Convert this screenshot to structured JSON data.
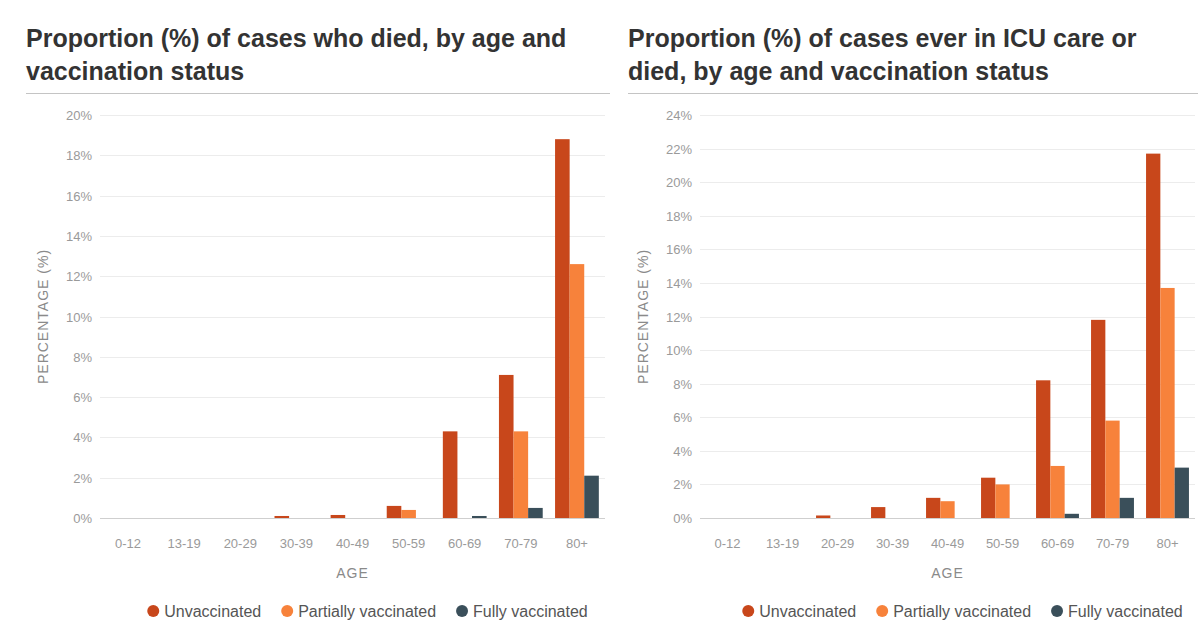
{
  "chart_data": [
    {
      "type": "bar",
      "title": "Proportion (%) of cases who died, by age and vaccination status",
      "x_label": "AGE",
      "y_label": "PERCENTAGE (%)",
      "categories": [
        "0-12",
        "13-19",
        "20-29",
        "30-39",
        "40-49",
        "50-59",
        "60-69",
        "70-79",
        "80+"
      ],
      "series": [
        {
          "name": "Unvaccinated",
          "color": "#c8471b",
          "values": [
            0,
            0,
            0,
            0.1,
            0.15,
            0.6,
            4.3,
            7.1,
            18.8
          ]
        },
        {
          "name": "Partially vaccinated",
          "color": "#f7823b",
          "values": [
            0,
            0,
            0,
            0,
            0,
            0.4,
            0,
            4.3,
            12.6
          ]
        },
        {
          "name": "Fully vaccinated",
          "color": "#3a4f5a",
          "values": [
            0,
            0,
            0,
            0,
            0,
            0,
            0.1,
            0.5,
            2.1
          ]
        }
      ],
      "ylim": [
        0,
        20
      ],
      "yticks": [
        {
          "value": 0,
          "label": "0%"
        },
        {
          "value": 2,
          "label": "2%"
        },
        {
          "value": 4,
          "label": "4%"
        },
        {
          "value": 6,
          "label": "6%"
        },
        {
          "value": 8,
          "label": "8%"
        },
        {
          "value": 10,
          "label": "10%"
        },
        {
          "value": 12,
          "label": "12%"
        },
        {
          "value": 14,
          "label": "14%"
        },
        {
          "value": 16,
          "label": "16%"
        },
        {
          "value": 18,
          "label": "18%"
        },
        {
          "value": 20,
          "label": "20%"
        }
      ],
      "grid": true,
      "legend": "bottom"
    },
    {
      "type": "bar",
      "title": "Proportion (%) of cases ever in ICU care or died, by age and vaccination status",
      "x_label": "AGE",
      "y_label": "PERCENTAGE (%)",
      "categories": [
        "0-12",
        "13-19",
        "20-29",
        "30-39",
        "40-49",
        "50-59",
        "60-69",
        "70-79",
        "80+"
      ],
      "series": [
        {
          "name": "Unvaccinated",
          "color": "#c8471b",
          "values": [
            0,
            0,
            0.15,
            0.65,
            1.2,
            2.4,
            8.2,
            11.8,
            21.7
          ]
        },
        {
          "name": "Partially vaccinated",
          "color": "#f7823b",
          "values": [
            0,
            0,
            0,
            0,
            1.0,
            2.0,
            3.1,
            5.8,
            13.7
          ]
        },
        {
          "name": "Fully vaccinated",
          "color": "#3a4f5a",
          "values": [
            0,
            0,
            0,
            0,
            0,
            0,
            0.25,
            1.2,
            3.0
          ]
        }
      ],
      "ylim": [
        0,
        24
      ],
      "yticks": [
        {
          "value": 0,
          "label": "0%"
        },
        {
          "value": 2,
          "label": "2%"
        },
        {
          "value": 4,
          "label": "4%"
        },
        {
          "value": 6,
          "label": "6%"
        },
        {
          "value": 8,
          "label": "8%"
        },
        {
          "value": 10,
          "label": "10%"
        },
        {
          "value": 12,
          "label": "12%"
        },
        {
          "value": 14,
          "label": "14%"
        },
        {
          "value": 16,
          "label": "16%"
        },
        {
          "value": 18,
          "label": "18%"
        },
        {
          "value": 20,
          "label": "20%"
        },
        {
          "value": 22,
          "label": "22%"
        },
        {
          "value": 24,
          "label": "24%"
        }
      ],
      "grid": true,
      "legend": "bottom"
    }
  ]
}
